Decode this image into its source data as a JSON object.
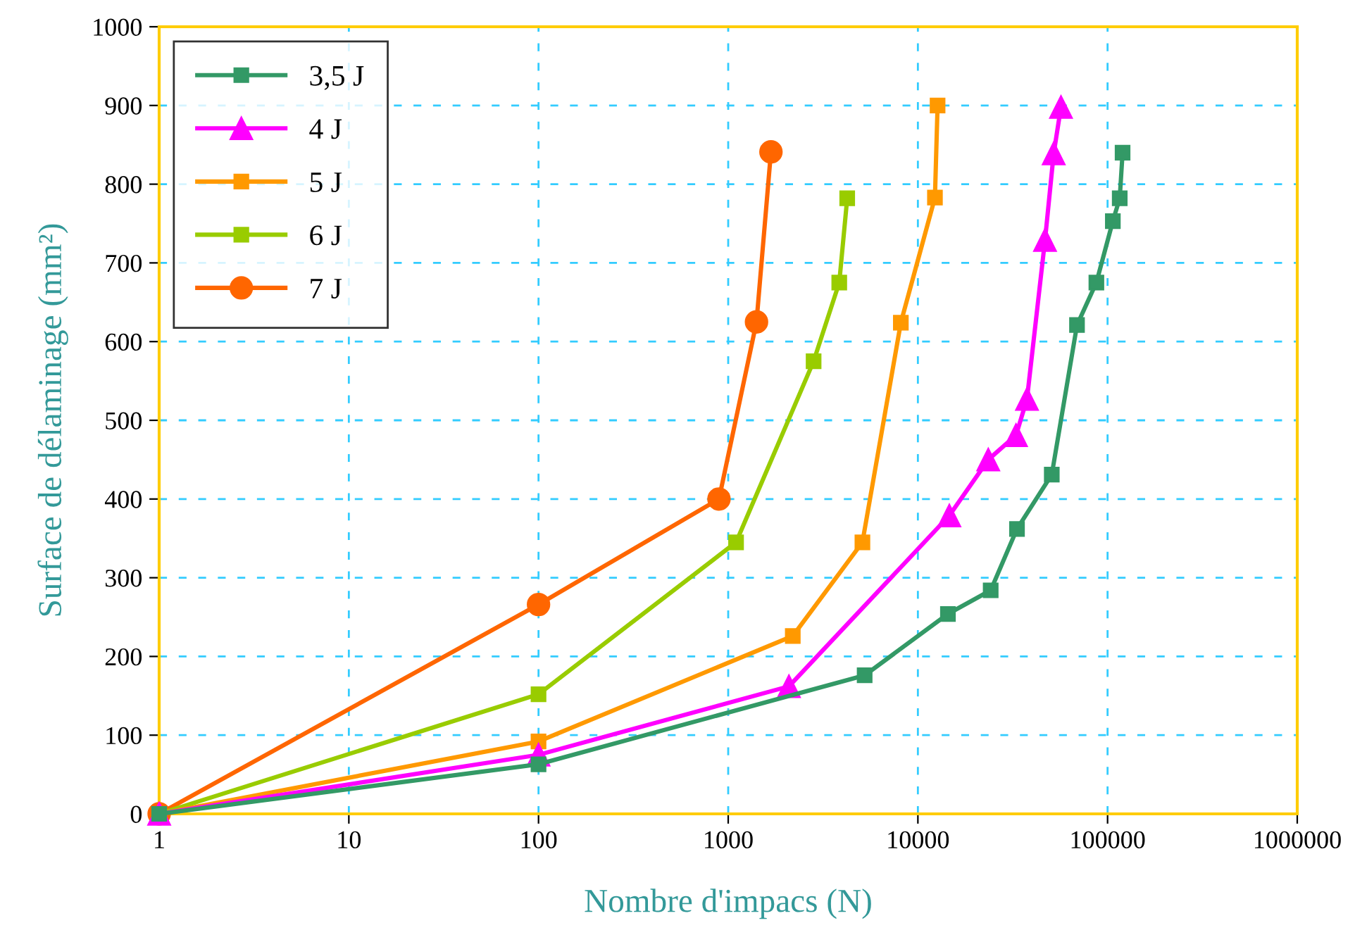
{
  "chart_data": {
    "type": "line",
    "xlabel": "Nombre d'impacs (N)",
    "ylabel": "Surface de délaminage (mm²)",
    "log": "x",
    "xlim": [
      1,
      1000000
    ],
    "xticks": [
      1,
      10,
      100,
      1000,
      10000,
      100000,
      1000000
    ],
    "ylim": [
      0,
      1000
    ],
    "yticks": [
      0,
      100,
      200,
      300,
      400,
      500,
      600,
      700,
      800,
      900,
      1000
    ],
    "grid": true,
    "legend": "top left",
    "line_style": "solid",
    "series": [
      {
        "name": "3,5 J",
        "color": "#339966",
        "marker": "square",
        "x": [
          1,
          100,
          5240,
          14400,
          24200,
          33300,
          50800,
          69000,
          87300,
          106600,
          115900,
          120000
        ],
        "values": [
          0,
          63,
          176,
          254,
          284,
          362,
          431,
          621,
          675,
          753,
          782,
          840
        ]
      },
      {
        "name": "4 J",
        "color": "#ff00ff",
        "marker": "triangle",
        "x": [
          1,
          100,
          2090,
          14650,
          23500,
          32900,
          37600,
          46800,
          52000,
          56800
        ],
        "values": [
          0,
          75,
          162,
          379,
          450,
          481,
          527,
          729,
          839,
          898
        ]
      },
      {
        "name": "5 J",
        "color": "#ff9900",
        "marker": "square",
        "x": [
          1,
          100,
          2190,
          5100,
          8130,
          12300,
          12700
        ],
        "values": [
          0,
          92,
          226,
          345,
          624,
          783,
          900
        ]
      },
      {
        "name": "6 J",
        "color": "#99cc00",
        "marker": "square",
        "x": [
          1,
          100,
          1100,
          2820,
          3850,
          4240
        ],
        "values": [
          0,
          152,
          345,
          575,
          675,
          782
        ]
      },
      {
        "name": "7 J",
        "color": "#ff6600",
        "marker": "circle",
        "x": [
          1,
          100,
          894,
          1410,
          1680
        ],
        "values": [
          0,
          266,
          400,
          625,
          841
        ]
      }
    ]
  }
}
